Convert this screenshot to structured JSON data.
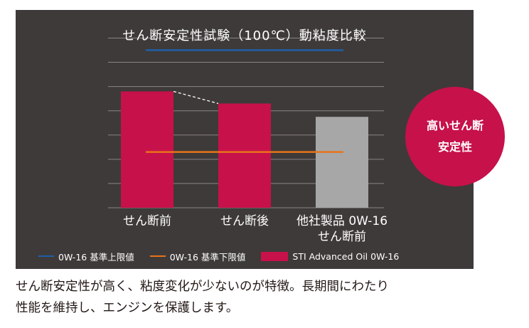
{
  "colors": {
    "panel_bg": "#3e3a39",
    "grid": "#8a8584",
    "brand_bar": "#c7114b",
    "other_bar": "#a7a7a7",
    "upper_limit": "#1f5fa8",
    "lower_limit": "#e8731a",
    "text_white": "#ffffff",
    "caption_text": "#231815"
  },
  "chart_data": {
    "type": "bar",
    "title": "せん断安定性試験（100℃）動粘度比較",
    "categories": [
      [
        "せん断前"
      ],
      [
        "せん断後"
      ],
      [
        "他社製品 0W-16",
        "せん断前"
      ]
    ],
    "values": [
      9.6,
      8.6,
      7.5
    ],
    "bar_series": [
      0,
      0,
      1
    ],
    "ylim": [
      0,
      13.5
    ],
    "grid_values": [
      2,
      4,
      6,
      8,
      10,
      12,
      14
    ],
    "reference_lines": [
      {
        "name": "0W-16 基準上限値",
        "value": 13.0,
        "color_key": "upper_limit",
        "from_category": 0,
        "to_category": 2
      },
      {
        "name": "0W-16 基準下限値",
        "value": 4.6,
        "color_key": "lower_limit",
        "from_category": 0,
        "to_category": 2
      }
    ],
    "connector": {
      "from_category": 0,
      "to_category": 1,
      "style": "dashed"
    },
    "grid": true,
    "legend_position": "bottom",
    "legend": [
      {
        "label": "0W-16 基準上限値",
        "kind": "line",
        "color_key": "upper_limit"
      },
      {
        "label": "0W-16 基準下限値",
        "kind": "line",
        "color_key": "lower_limit"
      },
      {
        "label": "STI Advanced Oil 0W-16",
        "kind": "box",
        "color_key": "brand_bar"
      }
    ]
  },
  "badge": {
    "line1": "高いせん断",
    "line2": "安定性"
  },
  "caption": {
    "line1": "せん断安定性が高く、粘度変化が少ないのが特徴。長期間にわたり",
    "line2": "性能を維持し、エンジンを保護します。"
  }
}
